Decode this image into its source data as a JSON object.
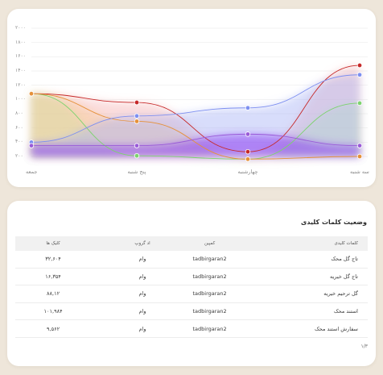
{
  "chart_data": {
    "type": "area",
    "categories": [
      "جمعه",
      "پنج شنبه",
      "چهارشنبه",
      "سه شنبه"
    ],
    "y_ticks": [
      "۲۰۰۰",
      "۱۸۰۰",
      "۱۶۰۰",
      "۱۴۰۰",
      "۱۲۰۰",
      "۱۰۰۰",
      "۸۰۰",
      "۶۰۰",
      "۴۰۰",
      "۲۰۰"
    ],
    "ylim": [
      100,
      2000
    ],
    "grid": true,
    "series": [
      {
        "color": "#c62828",
        "fill": "#f7b3b3",
        "values": [
          1030,
          900,
          170,
          1450
        ]
      },
      {
        "color": "#7cd36e",
        "fill": "#b8efb0",
        "values": [
          1030,
          110,
          60,
          890
        ]
      },
      {
        "color": "#e5913a",
        "fill": "#f7c78d",
        "values": [
          1030,
          620,
          60,
          100
        ]
      },
      {
        "color": "#7d8ff0",
        "fill": "#a8b3f7",
        "values": [
          310,
          700,
          820,
          1310
        ]
      },
      {
        "color": "#9a5bd8",
        "fill": "#8b3cf2",
        "values": [
          260,
          260,
          430,
          260
        ]
      }
    ]
  },
  "table": {
    "title": "وضعیت کلمات کلیدی",
    "headers": {
      "keyword": "کلمات کلیدی",
      "campaign": "کمپین",
      "adgroup": "اد گروپ",
      "clicks": "کلیک ها"
    },
    "rows": [
      {
        "keyword": "تاج گل محک",
        "campaign": "tadbirgaran2",
        "adgroup": "وام",
        "clicks": "۳۲,۶۰۴"
      },
      {
        "keyword": "تاج گل خیریه",
        "campaign": "tadbirgaran2",
        "adgroup": "وام",
        "clicks": "۱۶,۳۵۴"
      },
      {
        "keyword": "گل ترحیم خیریه",
        "campaign": "tadbirgaran2",
        "adgroup": "وام",
        "clicks": "۸۸,۱۲"
      },
      {
        "keyword": "استند محک",
        "campaign": "tadbirgaran2",
        "adgroup": "وام",
        "clicks": "۱۰۱,۹۸۴"
      },
      {
        "keyword": "سفارش استند محک",
        "campaign": "tadbirgaran2",
        "adgroup": "وام",
        "clicks": "۹,۵۶۲"
      }
    ],
    "pagination": "۱/۳"
  }
}
